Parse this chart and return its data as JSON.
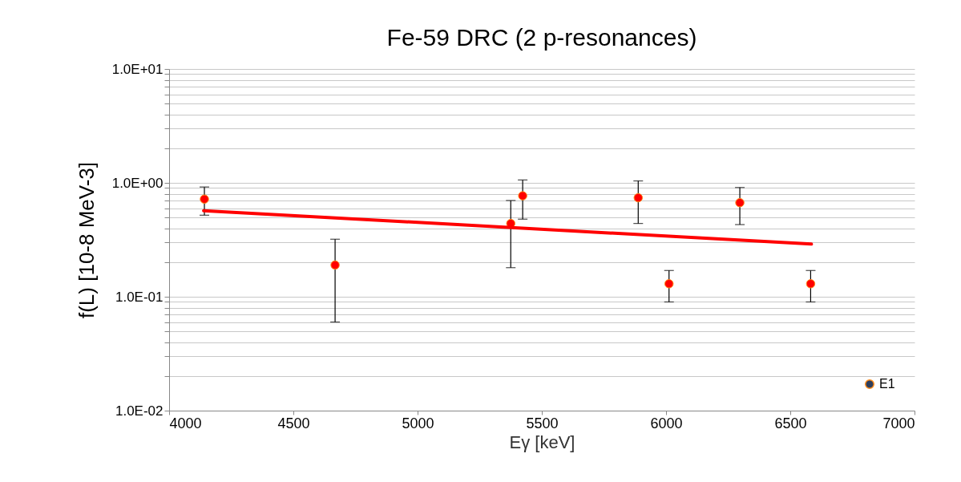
{
  "chart_data": {
    "type": "scatter",
    "title": "Fe-59 DRC (2 p-resonances)",
    "xlabel": "Eγ [keV]",
    "ylabel": "f(L) [10-8 MeV-3]",
    "x": [
      4142,
      4668,
      5375,
      5423,
      5888,
      6012,
      6297,
      6582
    ],
    "series": [
      {
        "color": "#ff0000",
        "values": [
          0.72,
          0.19,
          0.44,
          0.77,
          0.74,
          0.13,
          0.67,
          0.13
        ],
        "errors": [
          [
            0.52,
            0.92
          ],
          [
            0.06,
            0.32
          ],
          [
            0.18,
            0.7
          ],
          [
            0.48,
            1.06
          ],
          [
            0.44,
            1.04
          ],
          [
            0.09,
            0.17
          ],
          [
            0.43,
            0.91
          ],
          [
            0.09,
            0.17
          ]
        ]
      },
      {
        "type": "line",
        "marker": "none",
        "color": "#ff0000",
        "x": [
          4139,
          6585
        ],
        "values": [
          0.57,
          0.29
        ]
      },
      {
        "name": "E1",
        "color": "#2e3e5c",
        "values": [
          null,
          null,
          null,
          null,
          null,
          null,
          null,
          null
        ]
      }
    ],
    "log": "y",
    "xlim": [
      4000,
      7000
    ],
    "xticks": [
      4000,
      4500,
      5000,
      5500,
      6000,
      6500,
      7000
    ],
    "ylim": [
      0.01,
      10
    ],
    "yticks": [
      {
        "value": 0.01,
        "label": "1.0E-02"
      },
      {
        "value": 0.02,
        "label": null
      },
      {
        "value": 0.03,
        "label": null
      },
      {
        "value": 0.04,
        "label": null
      },
      {
        "value": 0.05,
        "label": null
      },
      {
        "value": 0.06,
        "label": null
      },
      {
        "value": 0.07,
        "label": null
      },
      {
        "value": 0.08,
        "label": null
      },
      {
        "value": 0.09,
        "label": null
      },
      {
        "value": 0.1,
        "label": "1.0E-01"
      },
      {
        "value": 0.2,
        "label": null
      },
      {
        "value": 0.3,
        "label": null
      },
      {
        "value": 0.4,
        "label": null
      },
      {
        "value": 0.5,
        "label": null
      },
      {
        "value": 0.6,
        "label": null
      },
      {
        "value": 0.7,
        "label": null
      },
      {
        "value": 0.8,
        "label": null
      },
      {
        "value": 0.9,
        "label": null
      },
      {
        "value": 1,
        "label": "1.0E+00"
      },
      {
        "value": 2,
        "label": null
      },
      {
        "value": 3,
        "label": null
      },
      {
        "value": 4,
        "label": null
      },
      {
        "value": 5,
        "label": null
      },
      {
        "value": 6,
        "label": null
      },
      {
        "value": 7,
        "label": null
      },
      {
        "value": 8,
        "label": null
      },
      {
        "value": 9,
        "label": null
      },
      {
        "value": 10,
        "label": "1.0E+01"
      }
    ],
    "grid": "y",
    "legend": "bottom right",
    "marker": "circle"
  }
}
